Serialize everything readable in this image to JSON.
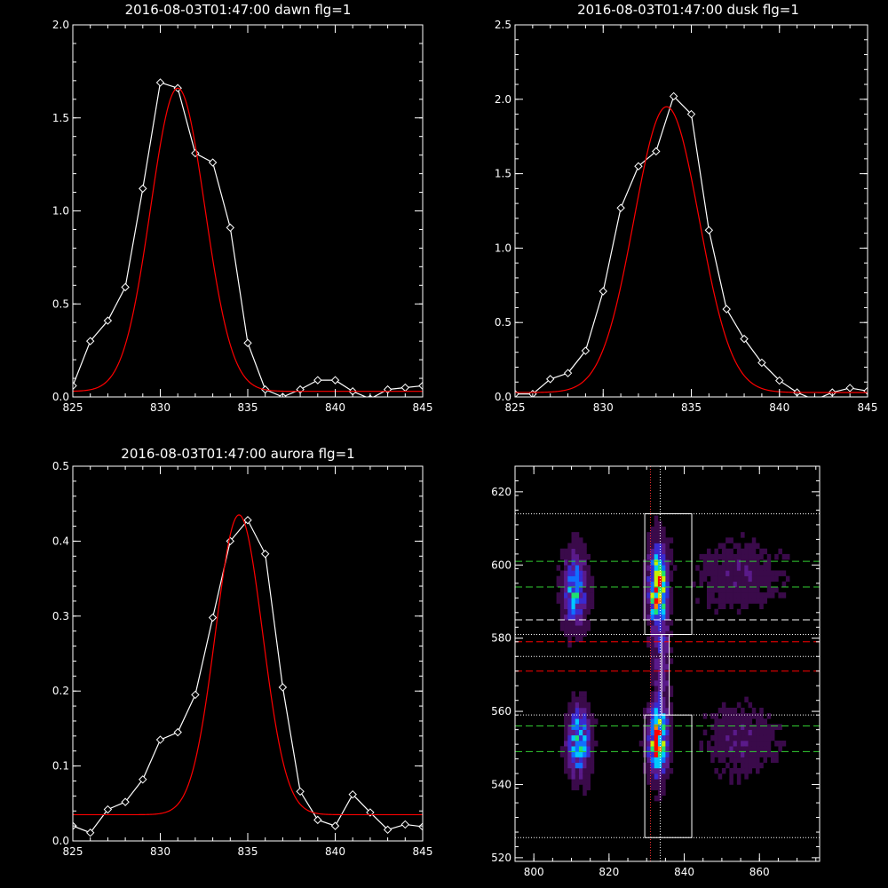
{
  "chart_data": [
    {
      "type": "line",
      "title": "2016-08-03T01:47:00 dawn flg=1",
      "xlim": [
        825,
        845
      ],
      "ylim": [
        0,
        2.0
      ],
      "xticks": [
        "825",
        "830",
        "835",
        "840",
        "845"
      ],
      "yticks": [
        "0.0",
        "0.5",
        "1.0",
        "1.5",
        "2.0"
      ],
      "xtick_values": [
        825,
        830,
        835,
        840,
        845
      ],
      "ytick_values": [
        0,
        0.5,
        1.0,
        1.5,
        2.0
      ],
      "series": [
        {
          "color": "#ffffff",
          "marker": "diamond",
          "x": [
            825,
            826,
            827,
            828,
            829,
            830,
            831,
            832,
            833,
            834,
            835,
            836,
            837,
            838,
            839,
            840,
            841,
            842,
            843,
            844,
            845
          ],
          "y": [
            0.06,
            0.3,
            0.41,
            0.59,
            1.12,
            1.69,
            1.66,
            1.31,
            1.26,
            0.91,
            0.29,
            0.04,
            0.0,
            0.04,
            0.09,
            0.09,
            0.03,
            -0.01,
            0.04,
            0.05,
            0.06
          ]
        },
        {
          "color": "#ff0000",
          "marker": "none",
          "fit": {
            "amplitude": 1.63,
            "center": 831.0,
            "sigma": 1.55,
            "baseline": 0.03
          }
        }
      ]
    },
    {
      "type": "line",
      "title": "2016-08-03T01:47:00 dusk flg=1",
      "xlim": [
        825,
        845
      ],
      "ylim": [
        0,
        2.5
      ],
      "xticks": [
        "825",
        "830",
        "835",
        "840",
        "845"
      ],
      "yticks": [
        "0.0",
        "0.5",
        "1.0",
        "1.5",
        "2.0",
        "2.5"
      ],
      "xtick_values": [
        825,
        830,
        835,
        840,
        845
      ],
      "ytick_values": [
        0,
        0.5,
        1.0,
        1.5,
        2.0,
        2.5
      ],
      "series": [
        {
          "color": "#ffffff",
          "marker": "diamond",
          "x": [
            825,
            826,
            827,
            828,
            829,
            830,
            831,
            832,
            833,
            834,
            835,
            836,
            837,
            838,
            839,
            840,
            841,
            842,
            843,
            844,
            845
          ],
          "y": [
            0.02,
            0.02,
            0.12,
            0.16,
            0.31,
            0.71,
            1.27,
            1.55,
            1.65,
            2.02,
            1.9,
            1.12,
            0.59,
            0.39,
            0.23,
            0.11,
            0.03,
            -0.02,
            0.03,
            0.06,
            0.04
          ]
        },
        {
          "color": "#ff0000",
          "marker": "none",
          "fit": {
            "amplitude": 1.92,
            "center": 833.6,
            "sigma": 1.85,
            "baseline": 0.03
          }
        }
      ]
    },
    {
      "type": "line",
      "title": "2016-08-03T01:47:00 aurora flg=1",
      "xlim": [
        825,
        845
      ],
      "ylim": [
        0,
        0.5
      ],
      "xticks": [
        "825",
        "830",
        "835",
        "840",
        "845"
      ],
      "yticks": [
        "0.0",
        "0.1",
        "0.2",
        "0.3",
        "0.4",
        "0.5"
      ],
      "xtick_values": [
        825,
        830,
        835,
        840,
        845
      ],
      "ytick_values": [
        0,
        0.1,
        0.2,
        0.3,
        0.4,
        0.5
      ],
      "series": [
        {
          "color": "#ffffff",
          "marker": "diamond",
          "x": [
            825,
            826,
            827,
            828,
            829,
            830,
            831,
            832,
            833,
            834,
            835,
            836,
            837,
            838,
            839,
            840,
            841,
            842,
            843,
            844,
            845
          ],
          "y": [
            0.02,
            0.011,
            0.042,
            0.052,
            0.082,
            0.135,
            0.145,
            0.195,
            0.298,
            0.4,
            0.428,
            0.383,
            0.205,
            0.066,
            0.028,
            0.02,
            0.062,
            0.038,
            0.015,
            0.022,
            0.019
          ]
        },
        {
          "color": "#ff0000",
          "marker": "none",
          "fit": {
            "amplitude": 0.4,
            "center": 834.5,
            "sigma": 1.35,
            "baseline": 0.035
          }
        }
      ]
    },
    {
      "type": "heatmap",
      "title": "",
      "xlim": [
        795,
        876
      ],
      "ylim": [
        519,
        627
      ],
      "xticks": [
        "800",
        "820",
        "840",
        "860"
      ],
      "yticks": [
        "520",
        "540",
        "560",
        "580",
        "600",
        "620"
      ],
      "xtick_values": [
        800,
        820,
        840,
        860
      ],
      "ytick_values": [
        520,
        540,
        560,
        580,
        600,
        620
      ],
      "colormap": [
        "#000000",
        "#3a0a4a",
        "#5a1a8a",
        "#3a2ad0",
        "#1070ff",
        "#00c8ff",
        "#20e070",
        "#c8f000",
        "#ff8000",
        "#ff0000"
      ],
      "blobs": [
        {
          "x": 811,
          "y": 593,
          "sx": 2.0,
          "sy": 6.5,
          "amp": 0.55
        },
        {
          "x": 812,
          "y": 552,
          "sx": 2.0,
          "sy": 6.0,
          "amp": 0.6
        },
        {
          "x": 833,
          "y": 594,
          "sx": 1.6,
          "sy": 7.0,
          "amp": 1.0
        },
        {
          "x": 833,
          "y": 552,
          "sx": 1.6,
          "sy": 6.0,
          "amp": 1.0
        },
        {
          "x": 834,
          "y": 572,
          "sx": 1.4,
          "sy": 9.0,
          "amp": 0.25
        },
        {
          "x": 855,
          "y": 552,
          "sx": 6.0,
          "sy": 6.0,
          "amp": 0.16
        },
        {
          "x": 855,
          "y": 597,
          "sx": 7.0,
          "sy": 6.0,
          "amp": 0.14
        }
      ],
      "boxes": [
        {
          "x0": 829.5,
          "x1": 842,
          "y0": 581,
          "y1": 614,
          "color": "#ffffff"
        },
        {
          "x0": 829.5,
          "x1": 842,
          "y0": 525.5,
          "y1": 559,
          "color": "#ffffff"
        },
        {
          "x0": 834,
          "x1": 836,
          "y0": 559,
          "y1": 581,
          "color": "#ffffff"
        }
      ],
      "hlines": [
        {
          "y": 614,
          "color": "#ffffff",
          "style": "dotted"
        },
        {
          "y": 601,
          "color": "#32cd32",
          "style": "dashed"
        },
        {
          "y": 594,
          "color": "#32cd32",
          "style": "dashed"
        },
        {
          "y": 585,
          "color": "#ffffff",
          "style": "dashed"
        },
        {
          "y": 581,
          "color": "#ffffff",
          "style": "dotted"
        },
        {
          "y": 579,
          "color": "#ff0000",
          "style": "dashed"
        },
        {
          "y": 575,
          "color": "#ffffff",
          "style": "dotted"
        },
        {
          "y": 571,
          "color": "#ff0000",
          "style": "dashed"
        },
        {
          "y": 559,
          "color": "#ffffff",
          "style": "dotted"
        },
        {
          "y": 556,
          "color": "#32cd32",
          "style": "dashed"
        },
        {
          "y": 549,
          "color": "#32cd32",
          "style": "dashed"
        },
        {
          "y": 525.5,
          "color": "#ffffff",
          "style": "dotted"
        }
      ],
      "vlines": [
        {
          "x": 831,
          "color": "#ff3030",
          "style": "dotted"
        },
        {
          "x": 833.6,
          "color": "#ffffff",
          "style": "dotted"
        }
      ]
    }
  ]
}
